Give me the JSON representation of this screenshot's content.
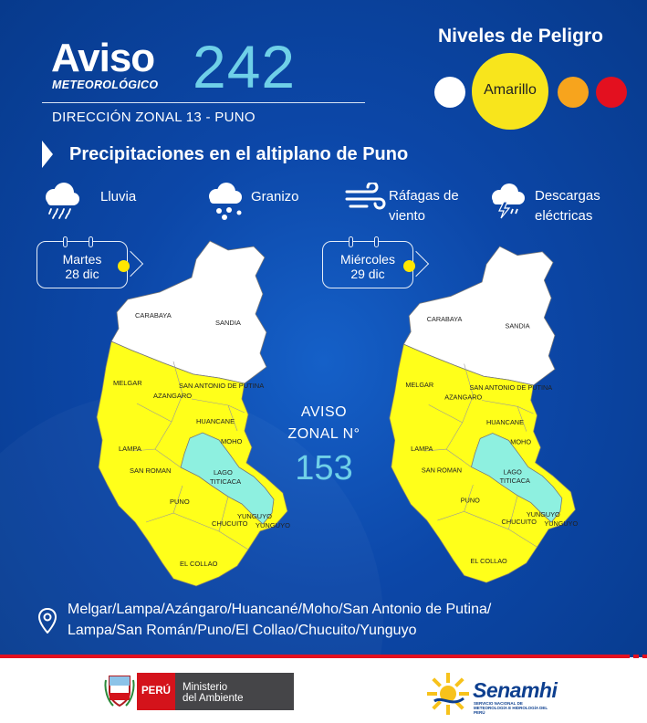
{
  "header": {
    "aviso": "Aviso",
    "meteorologico": "METEOROLÓGICO",
    "number": "242",
    "direccion": "DIRECCIÓN ZONAL 13 - PUNO"
  },
  "niveles": {
    "title": "Niveles de Peligro",
    "active_label": "Amarillo",
    "colors": {
      "blanco": "#ffffff",
      "amarillo": "#f8e51c",
      "naranja": "#f7a41d",
      "rojo": "#e3101f"
    }
  },
  "subtitle": "Precipitaciones en el altiplano de Puno",
  "hazards": [
    {
      "icon": "rain-cloud-icon",
      "label": "Lluvia"
    },
    {
      "icon": "hail-cloud-icon",
      "label": "Granizo"
    },
    {
      "icon": "wind-gusts-icon",
      "label_line1": "Ráfagas de",
      "label_line2": "viento"
    },
    {
      "icon": "lightning-cloud-icon",
      "label_line1": "Descargas",
      "label_line2": "eléctricas"
    }
  ],
  "days": [
    {
      "weekday": "Martes",
      "date": "28 dic"
    },
    {
      "weekday": "Miércoles",
      "date": "29 dic"
    }
  ],
  "zonal": {
    "line1": "AVISO",
    "line2": "ZONAL N°",
    "number": "153"
  },
  "map_labels": {
    "carabaya": "CARABAYA",
    "sandia": "SANDIA",
    "melgar": "MELGAR",
    "azangaro": "AZANGARO",
    "san_antonio": "SAN ANTONIO DE PUTINA",
    "huancane": "HUANCANE",
    "moho": "MOHO",
    "lampa": "LAMPA",
    "san_roman": "SAN ROMAN",
    "lago": "LAGO",
    "titicaca": "TITICACA",
    "puno": "PUNO",
    "yunguyo": "YUNGUYO",
    "chucuito": "CHUCUITO",
    "el_collao": "EL COLLAO"
  },
  "map_colors": {
    "alert": "#ffff1a",
    "no_alert": "#ffffff",
    "lake": "#8ef0e0"
  },
  "provinces_line1": "Melgar/Lampa/Azángaro/Huancané/Moho/San Antonio de Putina/",
  "provinces_line2": "Lampa/San Román/Puno/El Collao/Chucuito/Yunguyo",
  "footer": {
    "peru": "PERÚ",
    "ministerio_line1": "Ministerio",
    "ministerio_line2": "del Ambiente",
    "senamhi": "Senamhi",
    "senamhi_sub": "SERVICIO NACIONAL DE METEOROLOGÍA E HIDROLOGÍA DEL PERÚ"
  }
}
